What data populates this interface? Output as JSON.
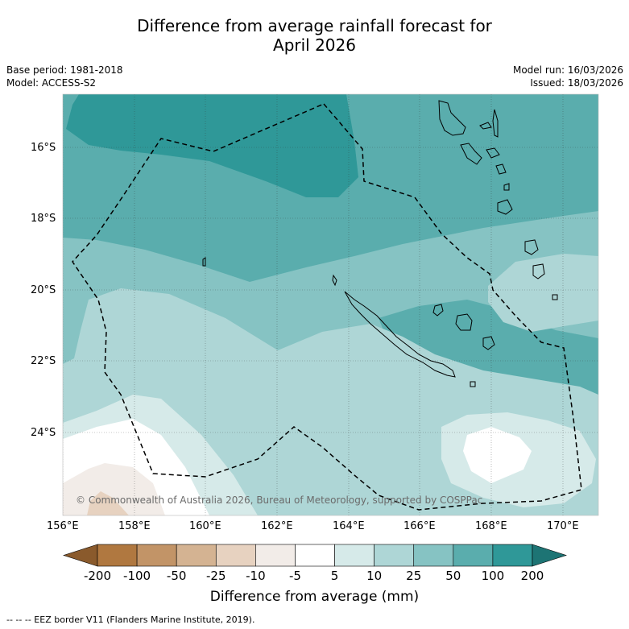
{
  "title_line1": "Difference from average rainfall forecast for",
  "title_line2": "April 2026",
  "meta": {
    "base_period": "Base period: 1981-2018",
    "model": "Model: ACCESS-S2",
    "model_run": "Model run: 16/03/2026",
    "issued": "Issued: 18/03/2026"
  },
  "axes": {
    "lat_labels": [
      "16°S",
      "18°S",
      "20°S",
      "22°S",
      "24°S"
    ],
    "lon_labels": [
      "156°E",
      "158°E",
      "160°E",
      "162°E",
      "164°E",
      "166°E",
      "168°E",
      "170°E"
    ]
  },
  "colorbar": {
    "ticks": [
      "-200",
      "-100",
      "-50",
      "-25",
      "-10",
      "-5",
      "5",
      "10",
      "25",
      "50",
      "100",
      "200"
    ],
    "colors": [
      "#8a5a2c",
      "#b07840",
      "#c29467",
      "#d4b392",
      "#e7d2c0",
      "#f2ece8",
      "#ffffff",
      "#d6eae9",
      "#aed6d6",
      "#86c3c3",
      "#5aadad",
      "#2f9898",
      "#1d7474"
    ],
    "title": "Difference from average (mm)"
  },
  "copyright": "© Commonwealth of Australia 2026, Bureau of Meteorology, supported by COSPPac",
  "footer": "--  --  -- EEZ border V11 (Flanders Marine Institute, 2019)."
}
